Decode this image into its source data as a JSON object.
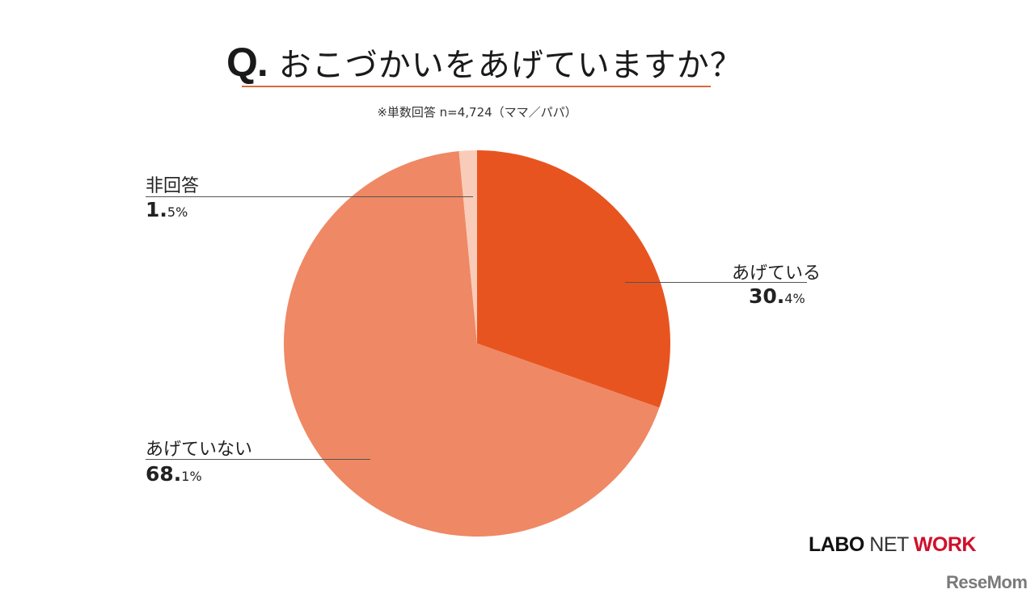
{
  "header": {
    "q_mark": "Q.",
    "question": "おこづかいをあげていますか？",
    "note": "※単数回答 n=4,724（ママ／パパ）"
  },
  "labels": {
    "yes": {
      "name": "あげている",
      "int": "30.",
      "dec": "4%"
    },
    "no": {
      "name": "あげていない",
      "int": "68.",
      "dec": "1%"
    },
    "na": {
      "name": "非回答",
      "int": "1.",
      "dec": "5%"
    }
  },
  "logos": {
    "labo_a": "LABO",
    "labo_b": "NET",
    "labo_c": "WORK",
    "resemom": "ReseMom"
  },
  "colors": {
    "yes": "#e8541f",
    "no": "#ef8864",
    "na": "#f9cbb9",
    "rule": "#d86a3c"
  },
  "chart_data": {
    "type": "pie",
    "title": "Q. おこづかいをあげていますか？",
    "subtitle": "※単数回答 n=4,724（ママ／パパ）",
    "categories": [
      "あげている",
      "あげていない",
      "非回答"
    ],
    "values": [
      30.4,
      68.1,
      1.5
    ],
    "unit": "%",
    "colors": [
      "#e8541f",
      "#ef8864",
      "#f9cbb9"
    ],
    "start_angle": "12 o'clock, clockwise",
    "legend": "direct labels with leader lines"
  }
}
